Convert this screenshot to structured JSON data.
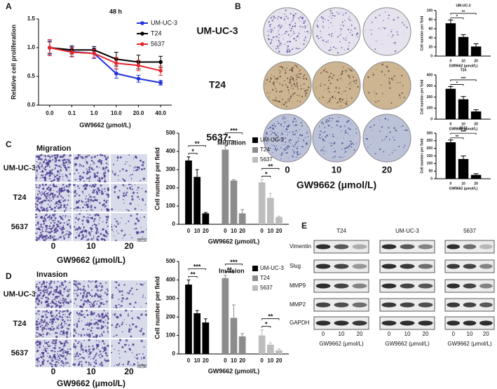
{
  "panel_labels": [
    "A",
    "B",
    "C",
    "D",
    "E"
  ],
  "chart_data": [
    {
      "type": "line",
      "annotation": "48 h",
      "xlabel": "GW9662 (μmol/L)",
      "ylabel": "Relative cell proliferation",
      "categories": [
        "0.0",
        "0.1",
        "1.0",
        "10.0",
        "20.0",
        "40.0"
      ],
      "ylim": [
        0,
        1.5
      ],
      "yticks": [
        {
          "value": 0,
          "label": "0.0"
        },
        {
          "value": 0.5,
          "label": "0.5"
        },
        {
          "value": 1,
          "label": "1.0"
        },
        {
          "value": 1.5,
          "label": "1.5"
        }
      ],
      "legend": "upper right",
      "series": [
        {
          "name": "UM-UC-3",
          "color": "#2233dd",
          "values": [
            1.0,
            0.93,
            0.9,
            0.55,
            0.46,
            0.39
          ],
          "errors": [
            0.12,
            0.08,
            0.09,
            0.08,
            0.06,
            0.04
          ]
        },
        {
          "name": "T24",
          "color": "#000000",
          "values": [
            1.0,
            0.96,
            0.96,
            0.8,
            0.75,
            0.75
          ],
          "errors": [
            0.1,
            0.07,
            0.06,
            0.12,
            0.12,
            0.1
          ]
        },
        {
          "name": "5637",
          "color": "#e8262b",
          "values": [
            1.0,
            0.92,
            0.9,
            0.73,
            0.69,
            0.6
          ],
          "errors": [
            0.14,
            0.08,
            0.07,
            0.1,
            0.09,
            0.08
          ]
        }
      ]
    },
    {
      "type": "bar",
      "title": "UM-UC-3",
      "ylabel": "Cell number per field",
      "xlabel": "GW9662 (μmol/L)",
      "categories": [
        "0",
        "10",
        "20"
      ],
      "values": [
        72,
        42,
        21
      ],
      "errors": [
        7,
        5,
        6
      ],
      "color": "#000000",
      "ylim": [
        0,
        100
      ],
      "yticks": [
        0,
        20,
        40,
        60,
        80,
        100
      ],
      "significance": [
        "*",
        "**"
      ]
    },
    {
      "type": "bar",
      "title": "T24",
      "ylabel": "Cell number per field",
      "xlabel": "GW9662 (μmol/L)",
      "categories": [
        "0",
        "10",
        "20"
      ],
      "values": [
        275,
        180,
        70
      ],
      "errors": [
        20,
        25,
        15
      ],
      "color": "#000000",
      "ylim": [
        0,
        400
      ],
      "yticks": [
        0,
        100,
        200,
        300,
        400
      ],
      "significance": [
        "*",
        "***"
      ]
    },
    {
      "type": "bar",
      "title": "5637",
      "ylabel": "Cell number per field",
      "xlabel": "GW9662 (μmol/L)",
      "categories": [
        "0",
        "10",
        "20"
      ],
      "values": [
        240,
        130,
        25
      ],
      "errors": [
        15,
        20,
        8
      ],
      "color": "#000000",
      "ylim": [
        0,
        300
      ],
      "yticks": [
        0,
        50,
        100,
        150,
        200,
        250,
        300
      ],
      "significance": [
        "**",
        "***"
      ]
    },
    {
      "type": "bar",
      "title": "Migration",
      "ylabel": "Cell number per field",
      "xlabel": "GW9662 (μmol/L)",
      "categories": [
        "0",
        "10",
        "20"
      ],
      "ylim": [
        0,
        500
      ],
      "yticks": [
        0,
        100,
        200,
        300,
        400,
        500
      ],
      "legend": "upper right",
      "series": [
        {
          "name": "UM-UC-3",
          "color": "#000000",
          "values": [
            350,
            260,
            60
          ],
          "errors": [
            20,
            40,
            5
          ],
          "significance": [
            "*",
            "**"
          ]
        },
        {
          "name": "T24",
          "color": "#8c8c8c",
          "values": [
            410,
            240,
            60
          ],
          "errors": [
            30,
            5,
            20
          ],
          "significance": [
            "*",
            "***"
          ]
        },
        {
          "name": "5637",
          "color": "#bdbdbd",
          "values": [
            230,
            145,
            40
          ],
          "errors": [
            15,
            25,
            5
          ],
          "significance": [
            "*",
            "**"
          ]
        }
      ]
    },
    {
      "type": "bar",
      "title": "Invasion",
      "ylabel": "Cell number per field",
      "xlabel": "GW9662 (μmol/L)",
      "categories": [
        "0",
        "10",
        "20"
      ],
      "ylim": [
        0,
        500
      ],
      "yticks": [
        0,
        100,
        200,
        300,
        400,
        500
      ],
      "legend": "upper right",
      "series": [
        {
          "name": "UM-UC-3",
          "color": "#000000",
          "values": [
            375,
            220,
            170
          ],
          "errors": [
            25,
            15,
            20
          ],
          "significance": [
            "**",
            "***"
          ]
        },
        {
          "name": "T24",
          "color": "#8c8c8c",
          "values": [
            410,
            195,
            95
          ],
          "errors": [
            15,
            70,
            15
          ],
          "significance": [
            "**",
            "***"
          ]
        },
        {
          "name": "5637",
          "color": "#bdbdbd",
          "values": [
            100,
            50,
            20
          ],
          "errors": [
            30,
            10,
            8
          ],
          "significance": [
            "*",
            "**"
          ]
        }
      ]
    }
  ],
  "colony": {
    "rows": [
      "UM-UC-3",
      "T24",
      "5637"
    ],
    "columns": [
      "0",
      "10",
      "20"
    ],
    "xlabel": "GW9662 (μmol/L)"
  },
  "migration_images": {
    "title": "Migration",
    "rows": [
      "UM-UC-3",
      "T24",
      "5637"
    ],
    "columns": [
      "0",
      "10",
      "20"
    ],
    "xlabel": "GW9662 (μmol/L)",
    "scale_bar": "200 μm"
  },
  "invasion_images": {
    "title": "Invasion",
    "rows": [
      "UM-UC-3",
      "T24",
      "5637"
    ],
    "columns": [
      "0",
      "10",
      "20"
    ],
    "xlabel": "GW9662 (μmol/L)",
    "scale_bar": "200 μm"
  },
  "western_blot": {
    "groups": [
      "T24",
      "UM-UC-3",
      "5637"
    ],
    "proteins": [
      "Vimentin",
      "Slug",
      "MMP9",
      "MMP2",
      "GAPDH"
    ],
    "lanes": [
      "0",
      "10",
      "20"
    ],
    "xlabel": "GW9662 (μmol/L)"
  }
}
